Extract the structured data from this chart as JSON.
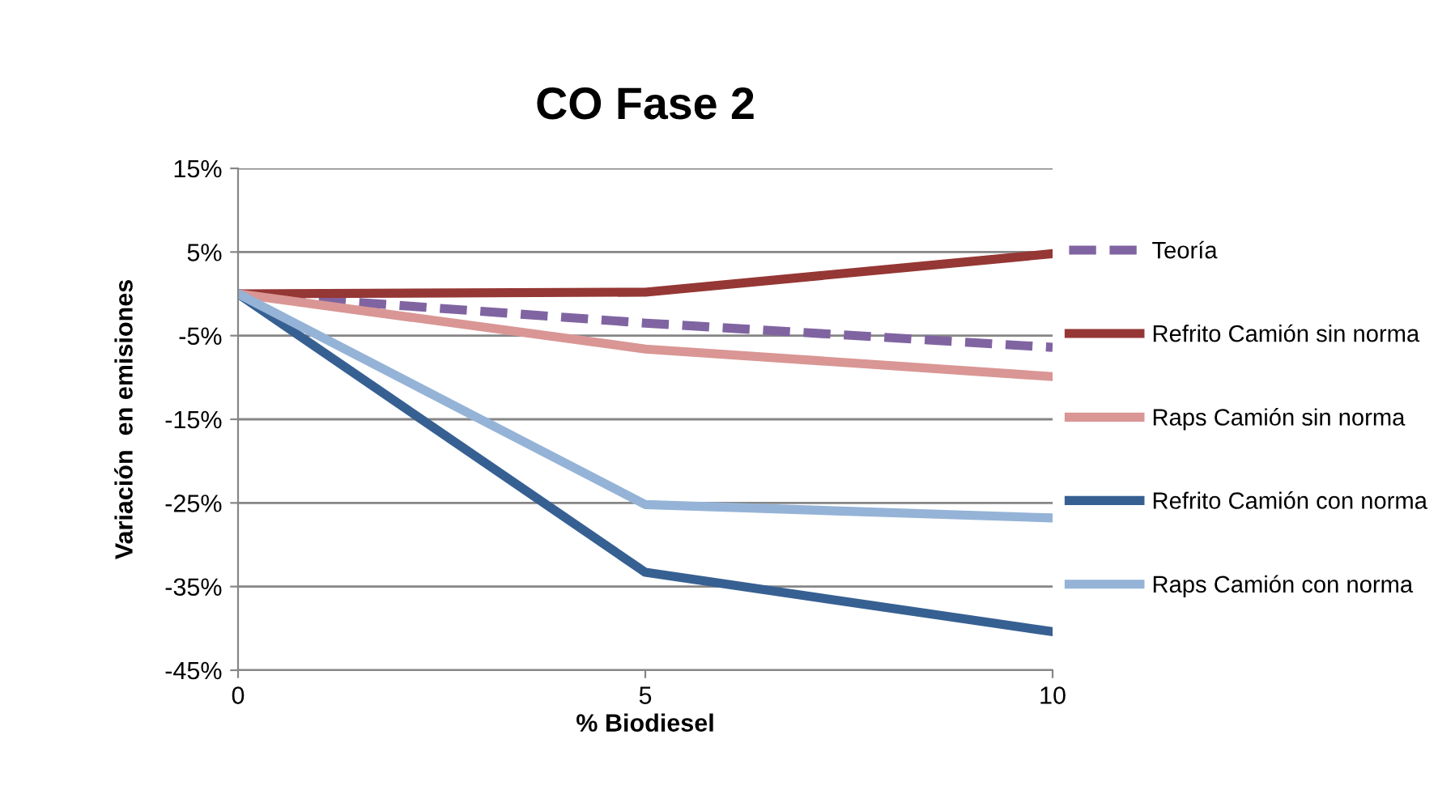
{
  "chart_data": {
    "type": "line",
    "title": "CO Fase 2",
    "xlabel": "% Biodiesel",
    "ylabel": "Variación  en emisiones",
    "categories": [
      "0",
      "5",
      "10"
    ],
    "series": [
      {
        "name": "Teoría",
        "color": "#8064a2",
        "values": [
          0,
          -3.5,
          -6.4
        ],
        "line_style": "dashed"
      },
      {
        "name": "Refrito Camión sin norma",
        "color": "#953735",
        "values": [
          0,
          0.2,
          4.8
        ]
      },
      {
        "name": "Raps Camión sin norma",
        "color": "#d99694",
        "values": [
          0,
          -6.6,
          -9.9
        ]
      },
      {
        "name": "Refrito Camión con norma",
        "color": "#376092",
        "values": [
          0,
          -33.3,
          -40.4
        ]
      },
      {
        "name": "Raps Camión con norma",
        "color": "#95b3d7",
        "values": [
          0,
          -25.2,
          -26.8
        ]
      }
    ],
    "ylim": [
      -45,
      15
    ],
    "yticks": [
      {
        "value": -45,
        "label": "-45%"
      },
      {
        "value": -35,
        "label": "-35%"
      },
      {
        "value": -25,
        "label": "-25%"
      },
      {
        "value": -15,
        "label": "-15%"
      },
      {
        "value": -5,
        "label": "-5%"
      },
      {
        "value": 5,
        "label": "5%"
      },
      {
        "value": 15,
        "label": "15%"
      }
    ],
    "grid": "y",
    "legend": "right",
    "marker": "none",
    "line_style": "solid"
  }
}
